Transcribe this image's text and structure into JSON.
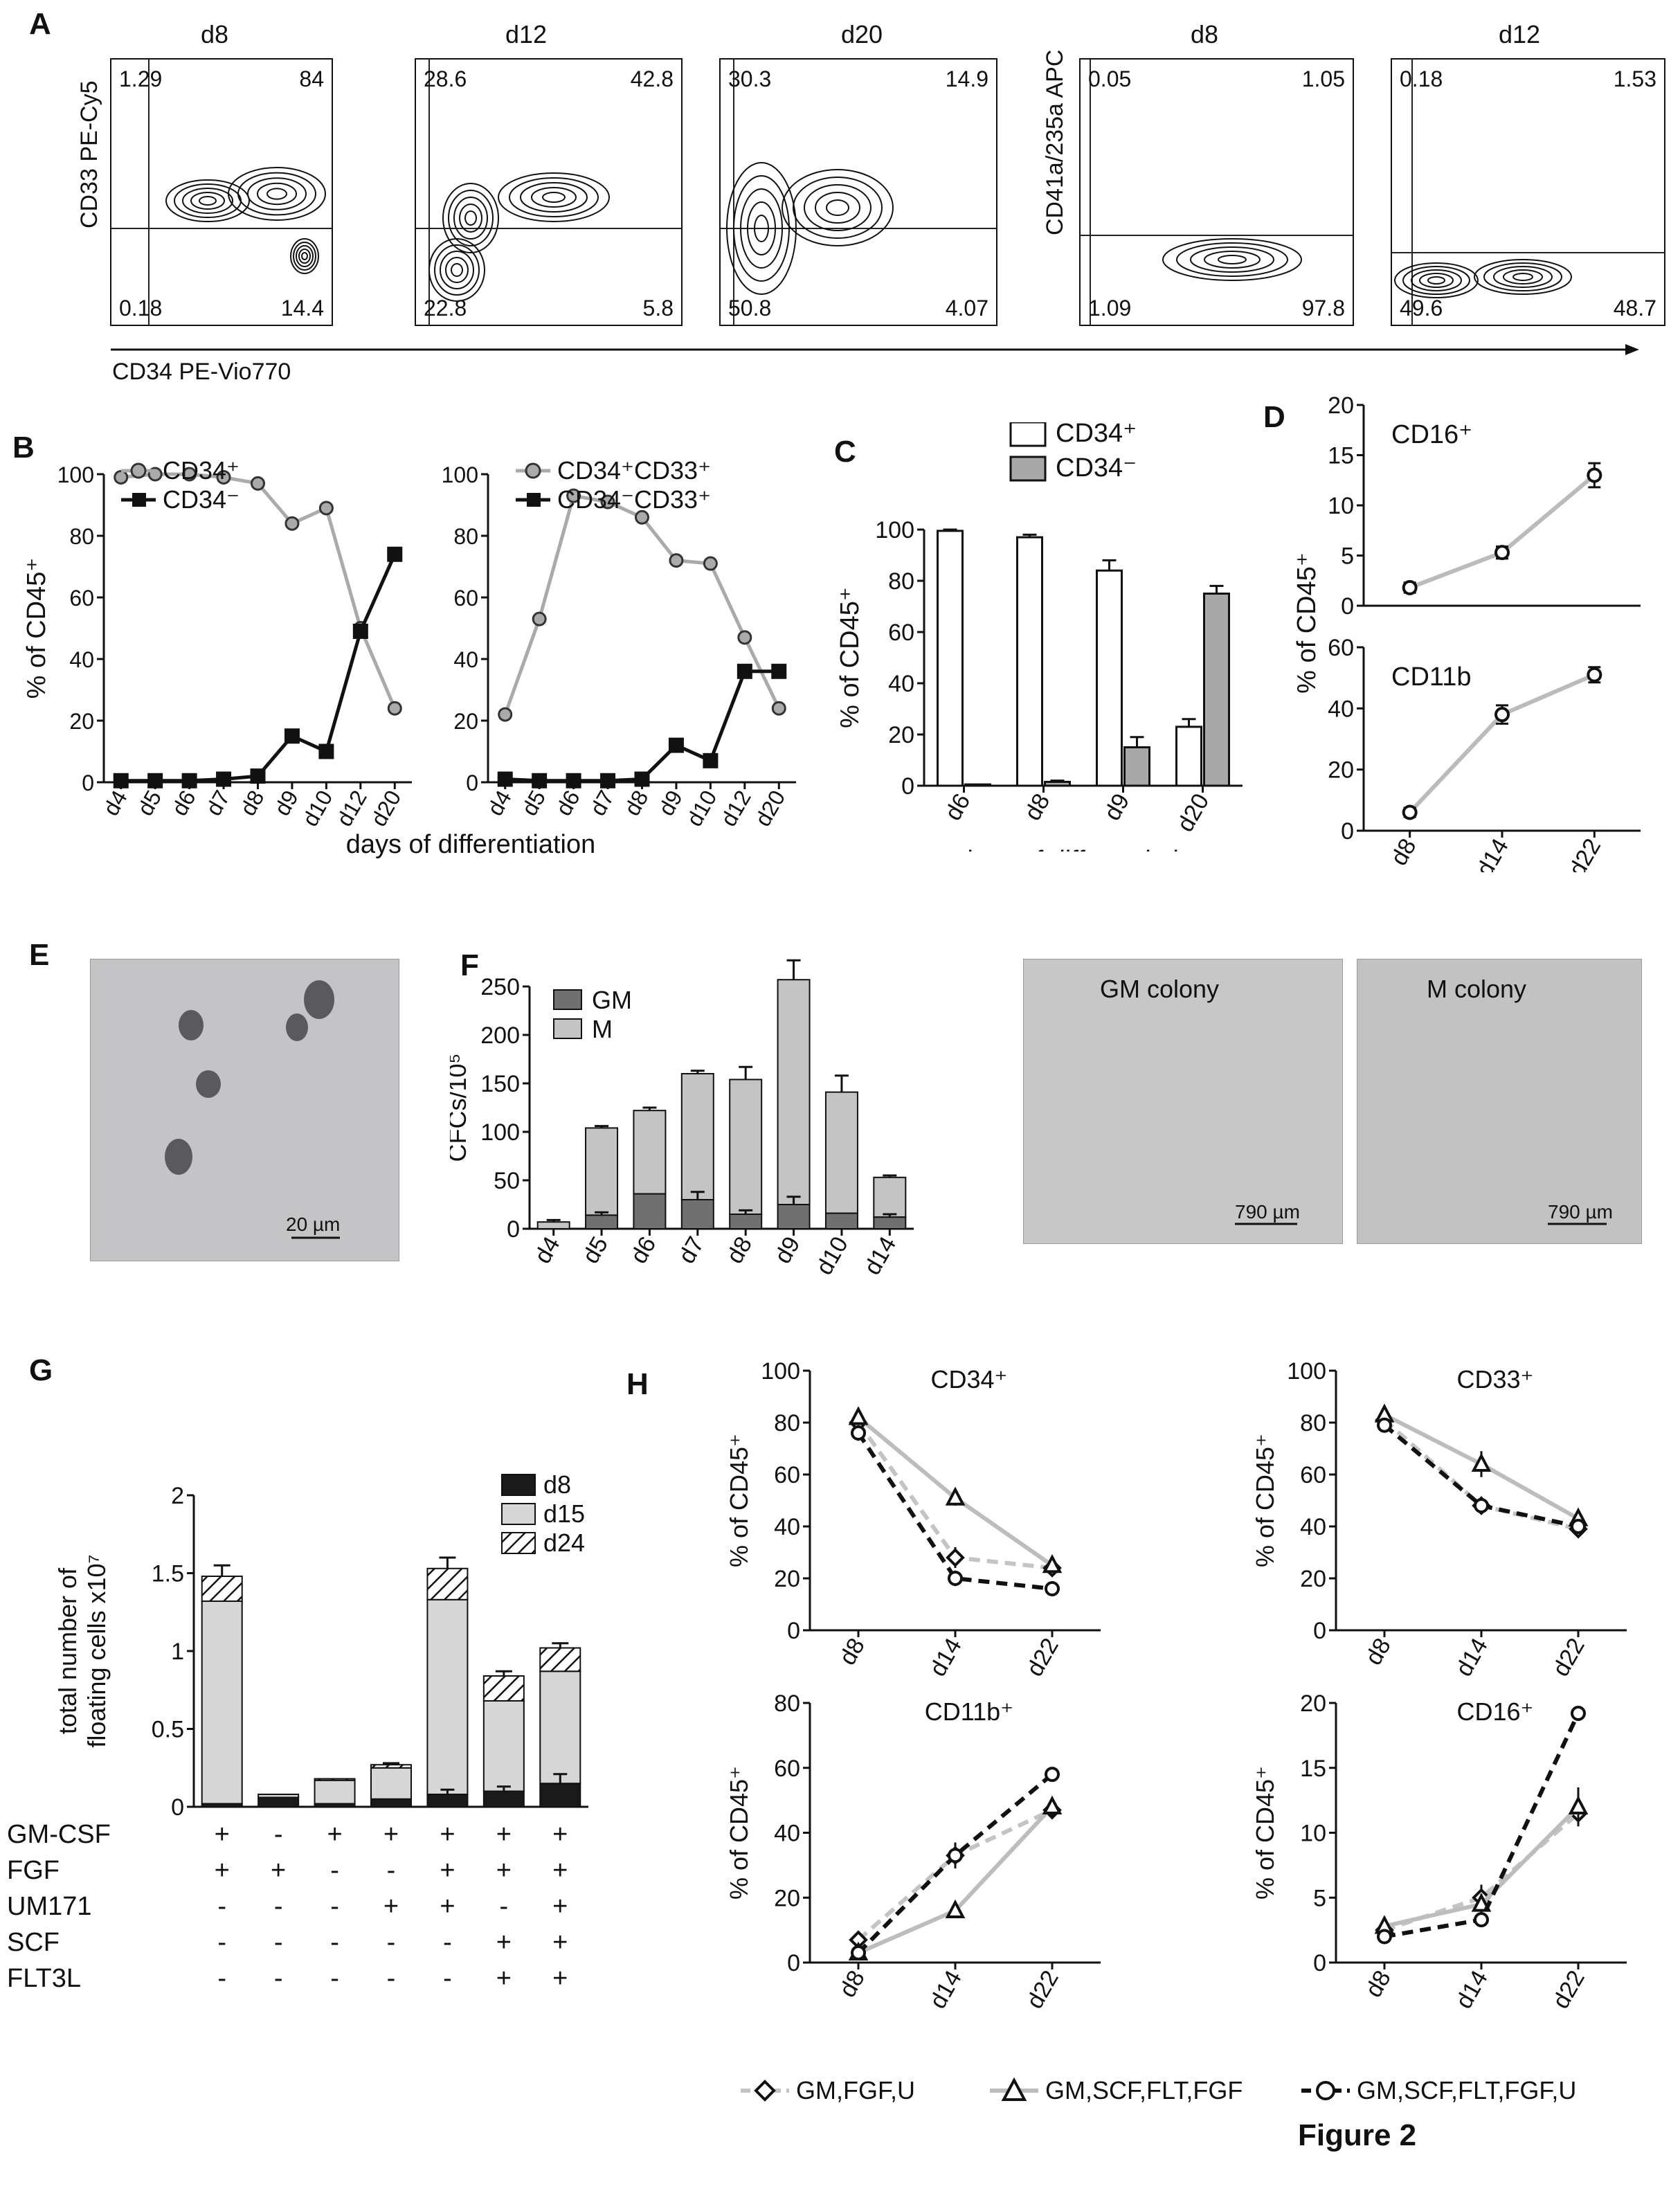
{
  "figure_title": "Figure 2",
  "panels": {
    "A": "A",
    "B": "B",
    "C": "C",
    "D": "D",
    "E": "E",
    "F": "F",
    "G": "G",
    "H": "H"
  },
  "flow": {
    "y_label_left": "CD33 PE-Cy5",
    "y_label_right": "CD41a/235a APC",
    "x_label": "CD34 PE-Vio770",
    "plots": [
      {
        "title": "d8",
        "q": [
          "1.29",
          "84",
          "0.18",
          "14.4"
        ]
      },
      {
        "title": "d12",
        "q": [
          "28.6",
          "42.8",
          "22.8",
          "5.8"
        ]
      },
      {
        "title": "d20",
        "q": [
          "30.3",
          "14.9",
          "50.8",
          "4.07"
        ]
      },
      {
        "title": "d8",
        "q": [
          "0.05",
          "1.05",
          "1.09",
          "97.8"
        ]
      },
      {
        "title": "d12",
        "q": [
          "0.18",
          "1.53",
          "49.6",
          "48.7"
        ]
      }
    ]
  },
  "micrographs": {
    "e_scale": "20 µm",
    "f_left_title": "GM colony",
    "f_left_scale": "790 µm",
    "f_right_title": "M colony",
    "f_right_scale": "790 µm"
  },
  "g_table": {
    "rows": [
      {
        "label": "GM-CSF",
        "values": [
          "+",
          "-",
          "+",
          "+",
          "+",
          "+",
          "+"
        ]
      },
      {
        "label": "FGF",
        "values": [
          "+",
          "+",
          "-",
          "-",
          "+",
          "+",
          "+"
        ]
      },
      {
        "label": "UM171",
        "values": [
          "-",
          "-",
          "-",
          "+",
          "+",
          "-",
          "+"
        ]
      },
      {
        "label": "SCF",
        "values": [
          "-",
          "-",
          "-",
          "-",
          "-",
          "+",
          "+"
        ]
      },
      {
        "label": "FLT3L",
        "values": [
          "-",
          "-",
          "-",
          "-",
          "-",
          "+",
          "+"
        ]
      }
    ]
  },
  "h_legend": [
    "GM,FGF,U",
    "GM,SCF,FLT,FGF",
    "GM,SCF,FLT,FGF,U"
  ],
  "chart_data": [
    {
      "id": "B-left",
      "type": "line",
      "categories": [
        "d4",
        "d5",
        "d6",
        "d7",
        "d8",
        "d9",
        "d10",
        "d12",
        "d20"
      ],
      "ylabel": "% of CD45⁺",
      "ylim": [
        0,
        100
      ],
      "yticks": [
        0,
        20,
        40,
        60,
        80,
        100
      ],
      "series": [
        {
          "name": "CD34⁺",
          "values": [
            99,
            100,
            100,
            99,
            97,
            84,
            89,
            50,
            24
          ]
        },
        {
          "name": "CD34⁻",
          "values": [
            0.5,
            0.5,
            0.5,
            1,
            2,
            15,
            10,
            49,
            74
          ]
        }
      ]
    },
    {
      "id": "B-right",
      "type": "line",
      "categories": [
        "d4",
        "d5",
        "d6",
        "d7",
        "d8",
        "d9",
        "d10",
        "d12",
        "d20"
      ],
      "xlabel": "days of differentiation",
      "ylim": [
        0,
        100
      ],
      "yticks": [
        0,
        20,
        40,
        60,
        80,
        100
      ],
      "series": [
        {
          "name": "CD34⁺CD33⁺",
          "values": [
            22,
            53,
            93,
            91,
            86,
            72,
            71,
            47,
            24
          ]
        },
        {
          "name": "CD34⁻CD33⁺",
          "values": [
            1,
            0.5,
            0.5,
            0.5,
            1,
            12,
            7,
            36,
            36
          ]
        }
      ]
    },
    {
      "id": "C",
      "type": "bar",
      "categories": [
        "d6",
        "d8",
        "d9",
        "d20"
      ],
      "xlabel": "days of differentiation",
      "ylabel": "% of CD45⁺",
      "ylim": [
        0,
        100
      ],
      "yticks": [
        0,
        20,
        40,
        60,
        80,
        100
      ],
      "series": [
        {
          "name": "CD34⁺",
          "values": [
            99.5,
            97,
            84,
            23
          ],
          "errors": [
            0.5,
            1,
            4,
            3
          ]
        },
        {
          "name": "CD34⁻",
          "values": [
            0.5,
            1.5,
            15,
            75
          ],
          "errors": [
            0,
            0.5,
            4,
            3
          ]
        }
      ]
    },
    {
      "id": "D-top",
      "type": "line",
      "title": "CD16⁺",
      "categories": [
        "d8",
        "d14",
        "d22"
      ],
      "ylim": [
        0,
        20
      ],
      "yticks": [
        0,
        5,
        10,
        15,
        20
      ],
      "values": [
        1.8,
        5.3,
        13
      ],
      "errors": [
        0.5,
        0.6,
        1.2
      ]
    },
    {
      "id": "D-bottom",
      "type": "line",
      "title": "CD11b",
      "categories": [
        "d8",
        "d14",
        "d22"
      ],
      "ylabel": "% of CD45⁺",
      "ylim": [
        0,
        60
      ],
      "yticks": [
        0,
        20,
        40,
        60
      ],
      "values": [
        6,
        38,
        51
      ],
      "errors": [
        1.5,
        3,
        2.5
      ]
    },
    {
      "id": "F",
      "type": "bar",
      "categories": [
        "d4",
        "d5",
        "d6",
        "d7",
        "d8",
        "d9",
        "d10",
        "d14"
      ],
      "ylabel": "CFCs/10⁵",
      "ylim": [
        0,
        250
      ],
      "yticks": [
        0,
        50,
        100,
        150,
        200,
        250
      ],
      "series": [
        {
          "name": "GM",
          "values": [
            0,
            14,
            36,
            30,
            15,
            25,
            16,
            12
          ],
          "errors": [
            0,
            3,
            0,
            8,
            4,
            8,
            0,
            3
          ]
        },
        {
          "name": "M",
          "values": [
            7,
            90,
            86,
            130,
            139,
            232,
            125,
            41
          ]
        }
      ],
      "total_errors": [
        2,
        2,
        3,
        3,
        13,
        20,
        17,
        2
      ]
    },
    {
      "id": "G",
      "type": "bar",
      "ylabel": "total number of\nfloating cells x10⁷",
      "ylim": [
        0,
        2
      ],
      "yticks": [
        "0",
        "0.5",
        "1",
        "1.5",
        "2"
      ],
      "series": [
        {
          "name": "d8",
          "values": [
            0.02,
            0.06,
            0.02,
            0.05,
            0.08,
            0.1,
            0.15
          ],
          "errors": [
            0,
            0,
            0,
            0,
            0.03,
            0.03,
            0.06
          ]
        },
        {
          "name": "d15",
          "values": [
            1.3,
            0.02,
            0.15,
            0.2,
            1.25,
            0.58,
            0.72
          ]
        },
        {
          "name": "d24",
          "values": [
            0.16,
            0,
            0.01,
            0.02,
            0.2,
            0.16,
            0.15
          ]
        }
      ],
      "total_errors": [
        0.07,
        0,
        0,
        0.01,
        0.07,
        0.03,
        0.03
      ]
    },
    {
      "id": "H-CD34",
      "type": "line",
      "title": "CD34⁺",
      "categories": [
        "d8",
        "d14",
        "d22"
      ],
      "ylabel": "% of CD45⁺",
      "ylim": [
        0,
        100
      ],
      "yticks": [
        0,
        20,
        40,
        60,
        80,
        100
      ],
      "series": [
        {
          "name": "GM,FGF,U",
          "values": [
            80,
            28,
            24
          ],
          "errors": [
            2,
            4,
            2
          ]
        },
        {
          "name": "GM,SCF,FLT,FGF",
          "values": [
            82,
            51,
            25
          ],
          "errors": [
            2,
            3,
            2
          ]
        },
        {
          "name": "GM,SCF,FLT,FGF,U",
          "values": [
            76,
            20,
            16
          ],
          "errors": [
            3,
            3,
            2
          ]
        }
      ]
    },
    {
      "id": "H-CD33",
      "type": "line",
      "title": "CD33⁺",
      "categories": [
        "d8",
        "d14",
        "d22"
      ],
      "ylabel": "% of CD45⁺",
      "ylim": [
        0,
        100
      ],
      "yticks": [
        0,
        20,
        40,
        60,
        80,
        100
      ],
      "series": [
        {
          "name": "GM,FGF,U",
          "values": [
            81,
            48,
            39
          ],
          "errors": [
            2,
            3,
            2
          ]
        },
        {
          "name": "GM,SCF,FLT,FGF",
          "values": [
            83,
            64,
            43
          ],
          "errors": [
            2,
            5,
            2
          ]
        },
        {
          "name": "GM,SCF,FLT,FGF,U",
          "values": [
            79,
            48,
            40
          ],
          "errors": [
            2,
            3,
            2
          ]
        }
      ]
    },
    {
      "id": "H-CD11b",
      "type": "line",
      "title": "CD11b⁺",
      "categories": [
        "d8",
        "d14",
        "d22"
      ],
      "ylabel": "% of CD45⁺",
      "ylim": [
        0,
        80
      ],
      "yticks": [
        0,
        20,
        40,
        60,
        80
      ],
      "series": [
        {
          "name": "GM,FGF,U",
          "values": [
            7,
            33,
            47
          ],
          "errors": [
            1,
            3,
            2
          ]
        },
        {
          "name": "GM,SCF,FLT,FGF",
          "values": [
            3,
            16,
            48
          ],
          "errors": [
            1,
            1,
            3
          ]
        },
        {
          "name": "GM,SCF,FLT,FGF,U",
          "values": [
            3,
            33,
            58
          ],
          "errors": [
            1,
            4,
            2
          ]
        }
      ]
    },
    {
      "id": "H-CD16",
      "type": "line",
      "title": "CD16⁺",
      "categories": [
        "d8",
        "d14",
        "d22"
      ],
      "ylabel": "% of CD45⁺",
      "ylim": [
        0,
        20
      ],
      "yticks": [
        0,
        5,
        10,
        15,
        20
      ],
      "series": [
        {
          "name": "GM,FGF,U",
          "values": [
            2.5,
            5,
            11.5
          ],
          "errors": [
            0.5,
            1,
            1
          ]
        },
        {
          "name": "GM,SCF,FLT,FGF",
          "values": [
            2.8,
            4.5,
            12
          ],
          "errors": [
            0.4,
            0.8,
            1.5
          ]
        },
        {
          "name": "GM,SCF,FLT,FGF,U",
          "values": [
            2,
            3.3,
            19.2
          ],
          "errors": [
            0.3,
            0.4,
            0.5
          ]
        }
      ]
    }
  ]
}
